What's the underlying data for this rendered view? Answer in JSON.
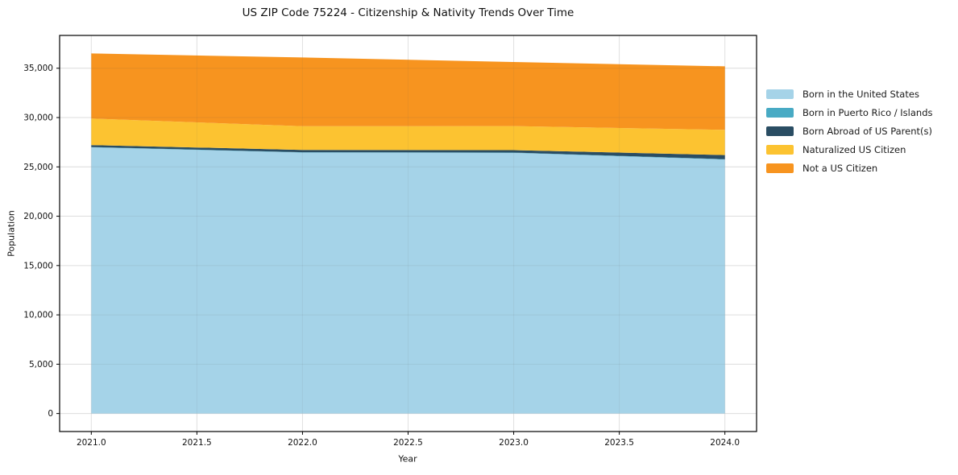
{
  "chart": {
    "title": "US ZIP Code 75224 - Citizenship & Nativity Trends Over Time",
    "xlabel": "Year",
    "ylabel": "Population"
  },
  "chart_data": {
    "type": "area",
    "stacked": true,
    "title": "US ZIP Code 75224 - Citizenship & Nativity Trends Over Time",
    "xlabel": "Year",
    "ylabel": "Population",
    "grid": true,
    "legend_position": "right-outside",
    "x": [
      2021,
      2022,
      2023,
      2024
    ],
    "series": [
      {
        "name": "Born in the United States",
        "color": "#a5d3e8",
        "values": [
          26980,
          26450,
          26420,
          25740
        ]
      },
      {
        "name": "Born in Puerto Rico / Islands",
        "color": "#48aac4",
        "values": [
          30,
          30,
          30,
          40
        ]
      },
      {
        "name": "Born Abroad of US Parent(s)",
        "color": "#2a4d63",
        "values": [
          200,
          240,
          250,
          420
        ]
      },
      {
        "name": "Naturalized US Citizen",
        "color": "#fcc331",
        "values": [
          2690,
          2400,
          2440,
          2550
        ]
      },
      {
        "name": "Not a US Citizen",
        "color": "#f7941f",
        "values": [
          6600,
          6970,
          6490,
          6440
        ]
      }
    ],
    "stack_totals": [
      36500,
      36090,
      35630,
      35190
    ],
    "xlim": [
      2020.85,
      2024.15
    ],
    "ylim": [
      -1825,
      38325
    ],
    "x_ticks": [
      {
        "v": 2021.0,
        "label": "2021.0"
      },
      {
        "v": 2021.5,
        "label": "2021.5"
      },
      {
        "v": 2022.0,
        "label": "2022.0"
      },
      {
        "v": 2022.5,
        "label": "2022.5"
      },
      {
        "v": 2023.0,
        "label": "2023.0"
      },
      {
        "v": 2023.5,
        "label": "2023.5"
      },
      {
        "v": 2024.0,
        "label": "2024.0"
      }
    ],
    "y_ticks": [
      {
        "v": 0,
        "label": "0"
      },
      {
        "v": 5000,
        "label": "5,000"
      },
      {
        "v": 10000,
        "label": "10,000"
      },
      {
        "v": 15000,
        "label": "15,000"
      },
      {
        "v": 20000,
        "label": "20,000"
      },
      {
        "v": 25000,
        "label": "25,000"
      },
      {
        "v": 30000,
        "label": "30,000"
      },
      {
        "v": 35000,
        "label": "35,000"
      }
    ],
    "colors": {
      "background": "#ffffff",
      "grid": "#ececec",
      "spine": "#000000",
      "text": "#111111"
    }
  }
}
